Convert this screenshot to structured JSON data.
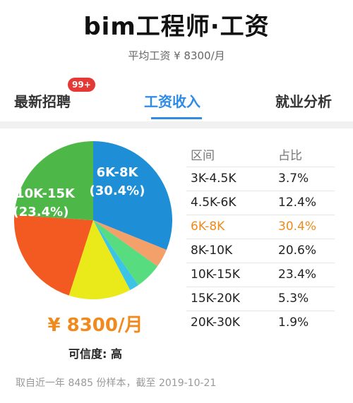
{
  "header": {
    "title": "bim工程师·工资",
    "subtitle": "平均工资 ¥ 8300/月"
  },
  "tabs": [
    {
      "label": "最新招聘",
      "badge": "99+"
    },
    {
      "label": "工资收入"
    },
    {
      "label": "就业分析"
    }
  ],
  "salary_table": {
    "headers": [
      "区间",
      "占比"
    ],
    "rows": [
      {
        "range": "3K-4.5K",
        "pct": "3.7%"
      },
      {
        "range": "4.5K-6K",
        "pct": "12.4%"
      },
      {
        "range": "6K-8K",
        "pct": "30.4%"
      },
      {
        "range": "8K-10K",
        "pct": "20.6%"
      },
      {
        "range": "10K-15K",
        "pct": "23.4%"
      },
      {
        "range": "15K-20K",
        "pct": "5.3%"
      },
      {
        "range": "20K-30K",
        "pct": "1.9%"
      }
    ],
    "highlight_color": "#f08a1c"
  },
  "summary": {
    "average": "¥ 8300/月",
    "confidence_label": "可信度:",
    "confidence_value": "高"
  },
  "footer": "取自近一年 8485 份样本，截至 2019-10-21",
  "chart_data": {
    "type": "pie",
    "categories": [
      "6K-8K",
      "3K-4.5K",
      "15K-20K",
      "20K-30K",
      "4.5K-6K",
      "8K-10K",
      "10K-15K"
    ],
    "values": [
      30.4,
      3.7,
      5.3,
      1.9,
      12.4,
      20.6,
      23.4
    ],
    "colors": [
      "#1e8fd6",
      "#f4a06a",
      "#58dc80",
      "#3cc4e6",
      "#eaea1a",
      "#f25a22",
      "#4db848"
    ],
    "labels": [
      {
        "text": "6K-8K",
        "sub": "(30.4%)"
      },
      {
        "text": "10K-15K",
        "sub": "(23.4%)"
      }
    ]
  }
}
